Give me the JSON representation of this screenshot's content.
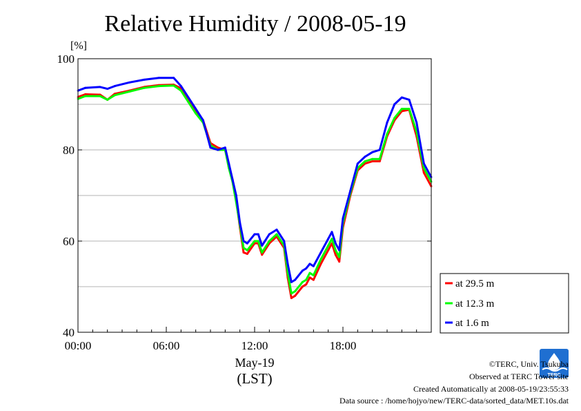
{
  "chart_data": {
    "type": "line",
    "title": "Relative Humidity / 2008-05-19",
    "ylabel": "[%]",
    "ylim": [
      40,
      100
    ],
    "xlim": [
      "00:00",
      "24:00"
    ],
    "yticks": [
      40,
      60,
      80,
      100
    ],
    "ygrid": [
      50,
      60,
      70,
      80,
      90
    ],
    "xticks": [
      "00:00",
      "06:00",
      "12:00",
      "18:00"
    ],
    "xlabel_date": "May-19",
    "xlabel_unit": "(LST)",
    "grid": true,
    "legend_position": "outside right, bottom",
    "series": [
      {
        "name": "at 29.5 m",
        "color": "#ff0000",
        "points": [
          [
            "00:00",
            91.6
          ],
          [
            "00:30",
            92.2
          ],
          [
            "01:30",
            92.1
          ],
          [
            "02:00",
            91.0
          ],
          [
            "02:30",
            92.3
          ],
          [
            "03:30",
            93.0
          ],
          [
            "04:30",
            93.8
          ],
          [
            "05:30",
            94.2
          ],
          [
            "06:30",
            94.3
          ],
          [
            "07:00",
            93.5
          ],
          [
            "07:30",
            91.0
          ],
          [
            "08:00",
            88.5
          ],
          [
            "08:30",
            86.5
          ],
          [
            "09:00",
            81.5
          ],
          [
            "09:30",
            80.5
          ],
          [
            "10:00",
            80.0
          ],
          [
            "10:15",
            76.5
          ],
          [
            "10:30",
            73.5
          ],
          [
            "10:45",
            69.0
          ],
          [
            "11:00",
            63.0
          ],
          [
            "11:15",
            57.5
          ],
          [
            "11:30",
            57.2
          ],
          [
            "12:00",
            59.5
          ],
          [
            "12:15",
            59.5
          ],
          [
            "12:30",
            57.0
          ],
          [
            "13:00",
            59.5
          ],
          [
            "13:30",
            61.0
          ],
          [
            "14:00",
            58.5
          ],
          [
            "14:15",
            52.0
          ],
          [
            "14:30",
            47.5
          ],
          [
            "14:45",
            48.0
          ],
          [
            "15:15",
            50.0
          ],
          [
            "15:30",
            50.5
          ],
          [
            "15:45",
            52.0
          ],
          [
            "16:00",
            51.5
          ],
          [
            "16:30",
            55.0
          ],
          [
            "17:00",
            58.0
          ],
          [
            "17:15",
            59.5
          ],
          [
            "17:30",
            57.0
          ],
          [
            "17:45",
            55.5
          ],
          [
            "18:00",
            63.0
          ],
          [
            "18:30",
            70.0
          ],
          [
            "19:00",
            75.5
          ],
          [
            "19:30",
            77.0
          ],
          [
            "20:00",
            77.5
          ],
          [
            "20:30",
            77.5
          ],
          [
            "21:00",
            83.0
          ],
          [
            "21:30",
            86.5
          ],
          [
            "22:00",
            88.5
          ],
          [
            "22:30",
            88.8
          ],
          [
            "23:00",
            83.0
          ],
          [
            "23:30",
            75.0
          ],
          [
            "24:00",
            72.0
          ]
        ]
      },
      {
        "name": "at 12.3 m",
        "color": "#00ff00",
        "points": [
          [
            "00:00",
            91.2
          ],
          [
            "00:30",
            91.8
          ],
          [
            "01:30",
            91.8
          ],
          [
            "02:00",
            91.0
          ],
          [
            "02:30",
            92.0
          ],
          [
            "03:30",
            92.8
          ],
          [
            "04:30",
            93.6
          ],
          [
            "05:30",
            94.0
          ],
          [
            "06:30",
            94.1
          ],
          [
            "07:00",
            93.0
          ],
          [
            "07:30",
            90.5
          ],
          [
            "08:00",
            88.0
          ],
          [
            "08:30",
            86.0
          ],
          [
            "09:00",
            81.0
          ],
          [
            "09:30",
            80.0
          ],
          [
            "10:00",
            80.0
          ],
          [
            "10:15",
            76.0
          ],
          [
            "10:30",
            73.0
          ],
          [
            "10:45",
            68.5
          ],
          [
            "11:00",
            63.5
          ],
          [
            "11:15",
            58.5
          ],
          [
            "11:30",
            58.0
          ],
          [
            "12:00",
            60.0
          ],
          [
            "12:15",
            60.0
          ],
          [
            "12:30",
            57.5
          ],
          [
            "13:00",
            60.0
          ],
          [
            "13:30",
            61.5
          ],
          [
            "14:00",
            59.0
          ],
          [
            "14:15",
            53.0
          ],
          [
            "14:30",
            48.5
          ],
          [
            "14:45",
            49.0
          ],
          [
            "15:15",
            51.0
          ],
          [
            "15:30",
            51.5
          ],
          [
            "15:45",
            53.0
          ],
          [
            "16:00",
            52.5
          ],
          [
            "16:30",
            56.0
          ],
          [
            "17:00",
            59.0
          ],
          [
            "17:15",
            60.5
          ],
          [
            "17:30",
            58.0
          ],
          [
            "17:45",
            56.5
          ],
          [
            "18:00",
            64.0
          ],
          [
            "18:30",
            70.5
          ],
          [
            "19:00",
            76.0
          ],
          [
            "19:30",
            77.5
          ],
          [
            "20:00",
            78.0
          ],
          [
            "20:30",
            78.0
          ],
          [
            "21:00",
            83.5
          ],
          [
            "21:30",
            87.0
          ],
          [
            "22:00",
            89.0
          ],
          [
            "22:30",
            89.0
          ],
          [
            "23:00",
            84.0
          ],
          [
            "23:30",
            76.0
          ],
          [
            "24:00",
            73.0
          ]
        ]
      },
      {
        "name": "at 1.6 m",
        "color": "#0000ff",
        "points": [
          [
            "00:00",
            93.0
          ],
          [
            "00:30",
            93.6
          ],
          [
            "01:30",
            93.8
          ],
          [
            "02:00",
            93.4
          ],
          [
            "02:30",
            94.0
          ],
          [
            "03:30",
            94.8
          ],
          [
            "04:30",
            95.4
          ],
          [
            "05:30",
            95.8
          ],
          [
            "06:30",
            95.8
          ],
          [
            "07:00",
            94.0
          ],
          [
            "07:30",
            91.5
          ],
          [
            "08:00",
            89.0
          ],
          [
            "08:30",
            86.5
          ],
          [
            "09:00",
            80.5
          ],
          [
            "09:30",
            80.0
          ],
          [
            "10:00",
            80.5
          ],
          [
            "10:15",
            77.0
          ],
          [
            "10:30",
            73.5
          ],
          [
            "10:45",
            70.0
          ],
          [
            "11:00",
            64.0
          ],
          [
            "11:15",
            60.0
          ],
          [
            "11:30",
            59.5
          ],
          [
            "12:00",
            61.5
          ],
          [
            "12:15",
            61.5
          ],
          [
            "12:30",
            59.0
          ],
          [
            "13:00",
            61.5
          ],
          [
            "13:30",
            62.5
          ],
          [
            "14:00",
            60.0
          ],
          [
            "14:15",
            55.0
          ],
          [
            "14:30",
            51.0
          ],
          [
            "14:45",
            51.5
          ],
          [
            "15:15",
            53.5
          ],
          [
            "15:30",
            54.0
          ],
          [
            "15:45",
            55.0
          ],
          [
            "16:00",
            54.5
          ],
          [
            "16:30",
            57.5
          ],
          [
            "17:00",
            60.5
          ],
          [
            "17:15",
            62.0
          ],
          [
            "17:30",
            59.5
          ],
          [
            "17:45",
            58.0
          ],
          [
            "18:00",
            65.0
          ],
          [
            "18:30",
            71.0
          ],
          [
            "19:00",
            77.0
          ],
          [
            "19:30",
            78.5
          ],
          [
            "20:00",
            79.5
          ],
          [
            "20:30",
            80.0
          ],
          [
            "21:00",
            86.0
          ],
          [
            "21:30",
            90.0
          ],
          [
            "22:00",
            91.5
          ],
          [
            "22:30",
            91.0
          ],
          [
            "23:00",
            86.0
          ],
          [
            "23:30",
            77.0
          ],
          [
            "24:00",
            74.0
          ]
        ]
      }
    ]
  },
  "credits": {
    "copyright": "©TERC, Univ. Tsukuba",
    "observed": "Observed at TERC Tower site",
    "created": "Created Automatically at 2008-05-19/23:55:33",
    "source": "Data source : /home/hojyo/new/TERC-data/sorted_data/MET.10s.dat"
  },
  "logo": {
    "text": "TERC",
    "color": "#1f6fd1"
  }
}
